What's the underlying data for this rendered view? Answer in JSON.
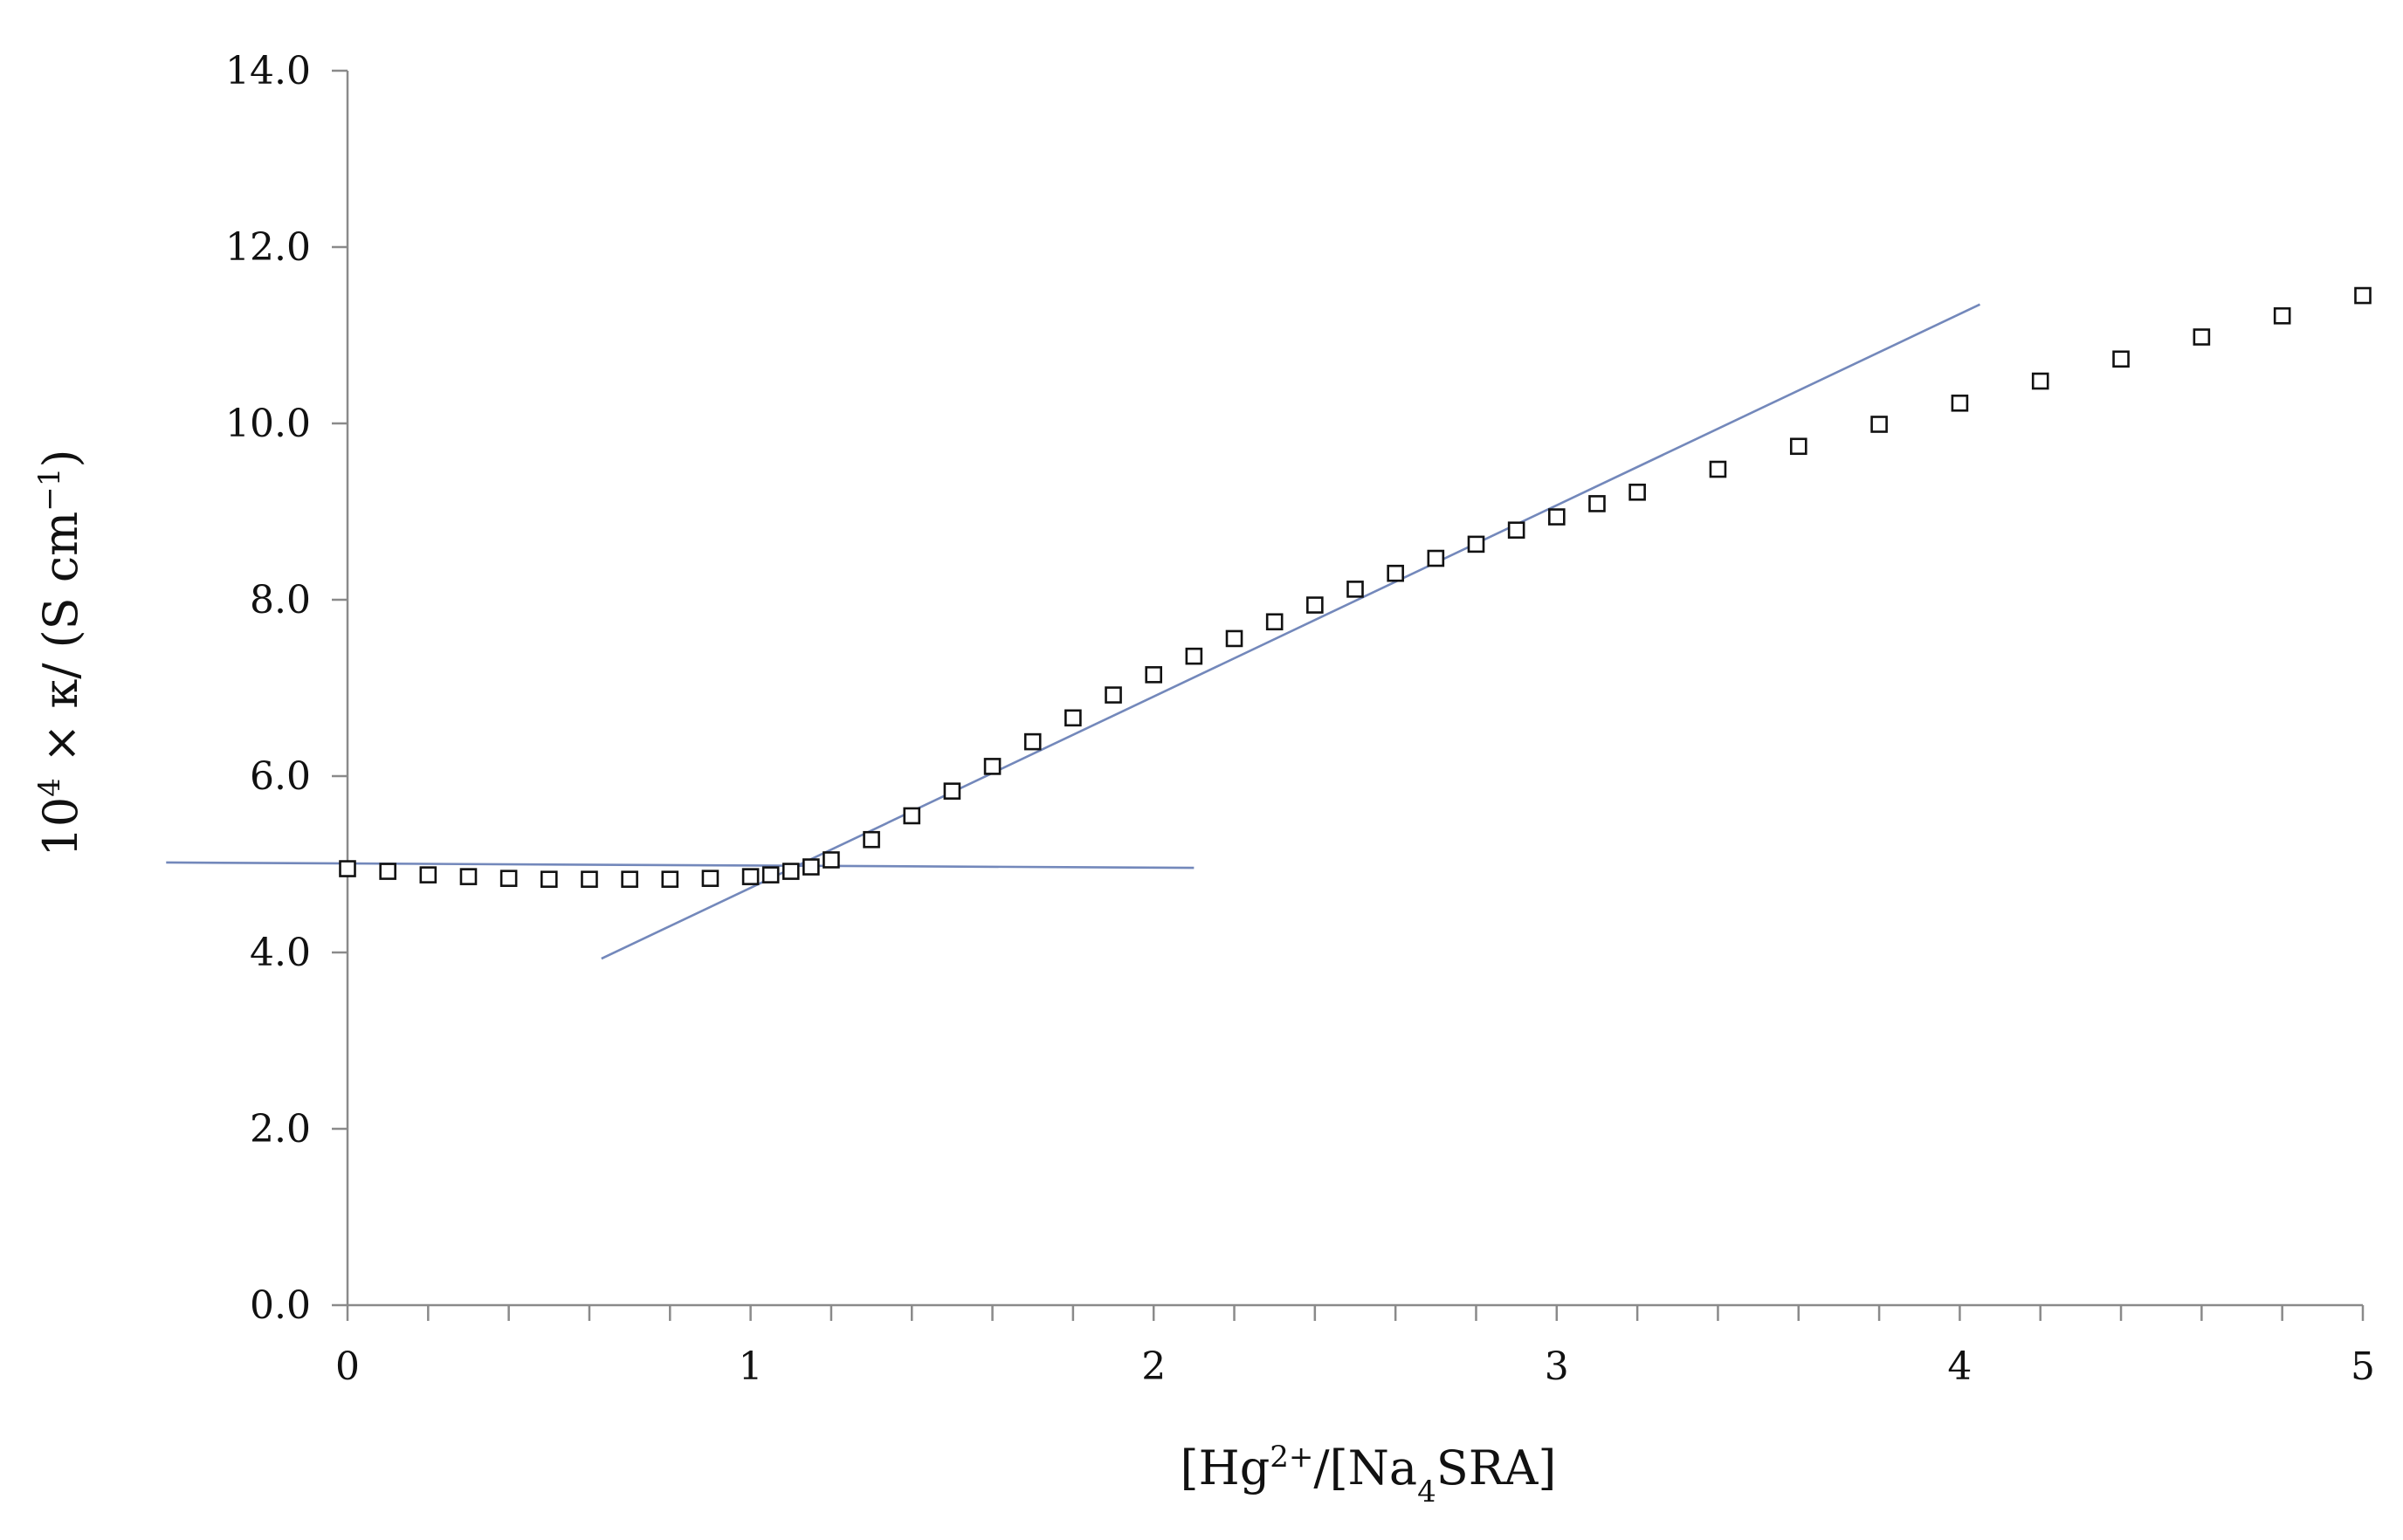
{
  "chart_data": {
    "type": "scatter",
    "xlabel": {
      "parts": [
        {
          "text": "[Hg",
          "style": "normal"
        },
        {
          "text": "2+",
          "style": "sup"
        },
        {
          "text": "/[Na",
          "style": "normal"
        },
        {
          "text": "4",
          "style": "sub"
        },
        {
          "text": "SRA]",
          "style": "normal"
        }
      ]
    },
    "ylabel": {
      "parts": [
        {
          "text": "10",
          "style": "normal"
        },
        {
          "text": "4",
          "style": "sup"
        },
        {
          "text": " × κ/ (S cm",
          "style": "normal"
        },
        {
          "text": "−1",
          "style": "sup"
        },
        {
          "text": ")",
          "style": "normal"
        }
      ]
    },
    "xlim": [
      0,
      5
    ],
    "ylim": [
      0,
      14
    ],
    "x_ticks": [
      0,
      1,
      2,
      3,
      4,
      5
    ],
    "x_tick_labels": [
      "0",
      "1",
      "2",
      "3",
      "4",
      "5"
    ],
    "x_minor_step": 0.2,
    "y_ticks": [
      0,
      2,
      4,
      6,
      8,
      10,
      12,
      14
    ],
    "y_tick_labels": [
      "0.0",
      "2.0",
      "4.0",
      "6.0",
      "8.0",
      "10.0",
      "12.0",
      "14.0"
    ],
    "grid": false,
    "marker": "open-square",
    "marker_color": "#111111",
    "line_color": "#7388bb",
    "series": [
      {
        "x": [
          0.0,
          0.1,
          0.2,
          0.3,
          0.4,
          0.5,
          0.6,
          0.7,
          0.8,
          0.9,
          1.0,
          1.05,
          1.1,
          1.15,
          1.2,
          1.3,
          1.4,
          1.5,
          1.6,
          1.7,
          1.8,
          1.9,
          2.0,
          2.1,
          2.2,
          2.3,
          2.4,
          2.5,
          2.6,
          2.7,
          2.8,
          2.9,
          3.0,
          3.1,
          3.2,
          3.4,
          3.6,
          3.8,
          4.0,
          4.2,
          4.4,
          4.6,
          4.8,
          5.0
        ],
        "y": [
          4.95,
          4.92,
          4.88,
          4.86,
          4.84,
          4.83,
          4.83,
          4.83,
          4.83,
          4.84,
          4.86,
          4.88,
          4.92,
          4.97,
          5.05,
          5.28,
          5.55,
          5.83,
          6.11,
          6.39,
          6.66,
          6.92,
          7.15,
          7.36,
          7.56,
          7.75,
          7.94,
          8.12,
          8.3,
          8.47,
          8.63,
          8.79,
          8.94,
          9.09,
          9.22,
          9.48,
          9.74,
          9.99,
          10.23,
          10.48,
          10.73,
          10.98,
          11.22,
          11.45
        ]
      }
    ],
    "fit_lines": [
      {
        "x": [
          -0.45,
          2.1
        ],
        "y": [
          5.02,
          4.96
        ]
      },
      {
        "x": [
          0.63,
          4.05
        ],
        "y": [
          3.93,
          11.35
        ]
      }
    ]
  }
}
